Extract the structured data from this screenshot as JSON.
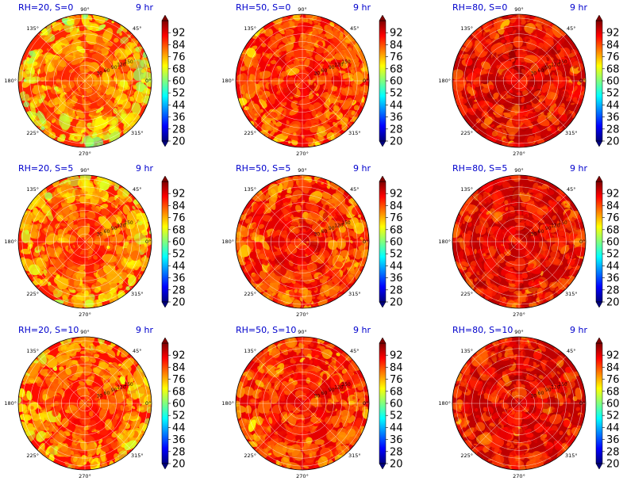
{
  "chart_data": {
    "type": "heatmap",
    "projection": "polar",
    "time_label": "9 hr",
    "angle_ticks": [
      "0°",
      "45°",
      "90°",
      "135°",
      "180°",
      "225°",
      "270°",
      "315°"
    ],
    "radial_ticks": [
      "30",
      "60",
      "90",
      "120",
      "150"
    ],
    "colorbar": {
      "colormap": "jet",
      "range": [
        20,
        100
      ],
      "ticks": [
        "92",
        "84",
        "76",
        "68",
        "60",
        "52",
        "44",
        "36",
        "28",
        "20"
      ],
      "extend": "both"
    },
    "panels": [
      {
        "title": "RH=20, S=0",
        "rh": 20,
        "s": 0,
        "mean_level": 85
      },
      {
        "title": "RH=50, S=0",
        "rh": 50,
        "s": 0,
        "mean_level": 89
      },
      {
        "title": "RH=80, S=0",
        "rh": 80,
        "s": 0,
        "mean_level": 93
      },
      {
        "title": "RH=20, S=5",
        "rh": 20,
        "s": 5,
        "mean_level": 86
      },
      {
        "title": "RH=50, S=5",
        "rh": 50,
        "s": 5,
        "mean_level": 90
      },
      {
        "title": "RH=80, S=5",
        "rh": 80,
        "s": 5,
        "mean_level": 93
      },
      {
        "title": "RH=20, S=10",
        "rh": 20,
        "s": 10,
        "mean_level": 87
      },
      {
        "title": "RH=50, S=10",
        "rh": 50,
        "s": 10,
        "mean_level": 90
      },
      {
        "title": "RH=80, S=10",
        "rh": 80,
        "s": 10,
        "mean_level": 93
      }
    ]
  },
  "colors": {
    "title": "#0000cc",
    "grid": "#ffffff",
    "axis": "#000000",
    "jet": [
      "#00007f",
      "#0000ff",
      "#007fff",
      "#00ffff",
      "#7fff7f",
      "#ffff00",
      "#ff7f00",
      "#ff0000",
      "#7f0000"
    ]
  }
}
